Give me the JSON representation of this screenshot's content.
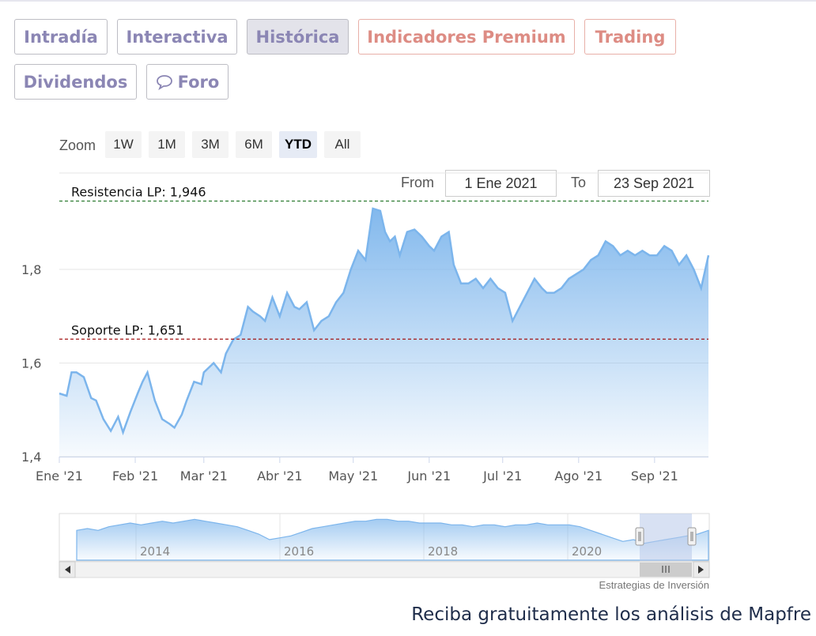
{
  "tabs": [
    {
      "label": "Intradía"
    },
    {
      "label": "Interactiva"
    },
    {
      "label": "Histórica"
    },
    {
      "label": "Indicadores Premium"
    },
    {
      "label": "Trading"
    },
    {
      "label": "Dividendos"
    },
    {
      "label": "Foro"
    }
  ],
  "zoom": {
    "label": "Zoom",
    "buttons": [
      "1W",
      "1M",
      "3M",
      "6M",
      "YTD",
      "All"
    ],
    "selected": "YTD"
  },
  "range": {
    "from_label": "From",
    "from_value": "1 Ene 2021",
    "to_label": "To",
    "to_value": "23 Sep 2021"
  },
  "credit": "Estrategias de Inversión",
  "cta": "Reciba gratuitamente los análisis de Mapfre",
  "colors": {
    "line": "#7cb5ec",
    "resistance": "#2e7d32",
    "support": "#a31515",
    "tab_purple": "#8b86b4",
    "tab_salmon": "#dd8c84"
  },
  "chart_data": {
    "type": "area",
    "ylim": [
      1.4,
      1.96
    ],
    "yticks": [
      1.4,
      1.6,
      1.8
    ],
    "ytick_labels": [
      "1,4",
      "1,6",
      "1,8"
    ],
    "xtick_labels": [
      "Ene '21",
      "Feb '21",
      "Mar '21",
      "Abr '21",
      "May '21",
      "Jun '21",
      "Jul '21",
      "Ago '21",
      "Sep '21"
    ],
    "annotations": [
      {
        "label": "Resistencia LP: 1,946",
        "value": 1.946
      },
      {
        "label": "Soporte LP: 1,651",
        "value": 1.651
      }
    ],
    "series": [
      {
        "x": [
          "2021-01-01",
          "2021-01-04",
          "2021-01-06",
          "2021-01-08",
          "2021-01-11",
          "2021-01-14",
          "2021-01-16",
          "2021-01-19",
          "2021-01-22",
          "2021-01-25",
          "2021-01-27",
          "2021-01-30",
          "2021-02-02",
          "2021-02-04",
          "2021-02-06",
          "2021-02-09",
          "2021-02-12",
          "2021-02-15",
          "2021-02-17",
          "2021-02-20",
          "2021-02-22",
          "2021-02-25",
          "2021-02-28",
          "2021-03-01",
          "2021-03-03",
          "2021-03-05",
          "2021-03-08",
          "2021-03-10",
          "2021-03-13",
          "2021-03-16",
          "2021-03-19",
          "2021-03-21",
          "2021-03-24",
          "2021-03-26",
          "2021-03-29",
          "2021-04-01",
          "2021-04-04",
          "2021-04-07",
          "2021-04-09",
          "2021-04-12",
          "2021-04-15",
          "2021-04-18",
          "2021-04-21",
          "2021-04-24",
          "2021-04-27",
          "2021-04-30",
          "2021-05-03",
          "2021-05-06",
          "2021-05-09",
          "2021-05-12",
          "2021-05-14",
          "2021-05-16",
          "2021-05-18",
          "2021-05-20",
          "2021-05-23",
          "2021-05-26",
          "2021-05-29",
          "2021-06-01",
          "2021-06-03",
          "2021-06-06",
          "2021-06-09",
          "2021-06-11",
          "2021-06-14",
          "2021-06-17",
          "2021-06-20",
          "2021-06-23",
          "2021-06-26",
          "2021-06-29",
          "2021-07-02",
          "2021-07-05",
          "2021-07-08",
          "2021-07-11",
          "2021-07-14",
          "2021-07-17",
          "2021-07-19",
          "2021-07-22",
          "2021-07-25",
          "2021-07-28",
          "2021-07-31",
          "2021-08-03",
          "2021-08-06",
          "2021-08-09",
          "2021-08-12",
          "2021-08-15",
          "2021-08-18",
          "2021-08-21",
          "2021-08-24",
          "2021-08-27",
          "2021-08-30",
          "2021-09-02",
          "2021-09-05",
          "2021-09-08",
          "2021-09-11",
          "2021-09-14",
          "2021-09-17",
          "2021-09-20",
          "2021-09-23"
        ],
        "y": [
          1.535,
          1.53,
          1.58,
          1.58,
          1.57,
          1.525,
          1.52,
          1.48,
          1.455,
          1.485,
          1.452,
          1.495,
          1.535,
          1.56,
          1.58,
          1.52,
          1.48,
          1.47,
          1.462,
          1.49,
          1.52,
          1.56,
          1.555,
          1.58,
          1.59,
          1.6,
          1.58,
          1.62,
          1.65,
          1.66,
          1.72,
          1.71,
          1.7,
          1.69,
          1.74,
          1.7,
          1.75,
          1.72,
          1.715,
          1.73,
          1.67,
          1.69,
          1.7,
          1.73,
          1.75,
          1.8,
          1.84,
          1.82,
          1.93,
          1.925,
          1.88,
          1.86,
          1.87,
          1.83,
          1.88,
          1.885,
          1.87,
          1.85,
          1.84,
          1.87,
          1.88,
          1.81,
          1.77,
          1.77,
          1.78,
          1.76,
          1.78,
          1.76,
          1.75,
          1.69,
          1.72,
          1.75,
          1.78,
          1.76,
          1.75,
          1.75,
          1.76,
          1.78,
          1.79,
          1.8,
          1.82,
          1.83,
          1.86,
          1.85,
          1.83,
          1.84,
          1.83,
          1.84,
          1.83,
          1.83,
          1.85,
          1.84,
          1.81,
          1.83,
          1.8,
          1.76,
          1.83
        ]
      }
    ],
    "navigator": {
      "xtick_labels": [
        "2014",
        "2016",
        "2018",
        "2020"
      ],
      "y": [
        1.6,
        1.62,
        1.6,
        1.64,
        1.66,
        1.68,
        1.66,
        1.68,
        1.7,
        1.68,
        1.7,
        1.72,
        1.7,
        1.68,
        1.66,
        1.64,
        1.6,
        1.56,
        1.5,
        1.52,
        1.54,
        1.58,
        1.62,
        1.64,
        1.66,
        1.68,
        1.7,
        1.7,
        1.72,
        1.72,
        1.7,
        1.7,
        1.68,
        1.68,
        1.68,
        1.66,
        1.66,
        1.64,
        1.66,
        1.66,
        1.64,
        1.66,
        1.66,
        1.68,
        1.66,
        1.66,
        1.66,
        1.64,
        1.6,
        1.56,
        1.52,
        1.48,
        1.5,
        1.46,
        1.48,
        1.5,
        1.52,
        1.54,
        1.56,
        1.6
      ]
    }
  }
}
